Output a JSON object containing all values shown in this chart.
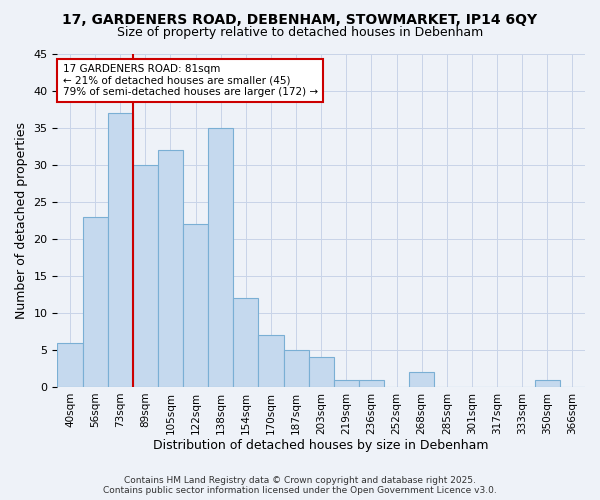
{
  "title_line1": "17, GARDENERS ROAD, DEBENHAM, STOWMARKET, IP14 6QY",
  "title_line2": "Size of property relative to detached houses in Debenham",
  "xlabel": "Distribution of detached houses by size in Debenham",
  "ylabel": "Number of detached properties",
  "categories": [
    "40sqm",
    "56sqm",
    "73sqm",
    "89sqm",
    "105sqm",
    "122sqm",
    "138sqm",
    "154sqm",
    "170sqm",
    "187sqm",
    "203sqm",
    "219sqm",
    "236sqm",
    "252sqm",
    "268sqm",
    "285sqm",
    "301sqm",
    "317sqm",
    "333sqm",
    "350sqm",
    "366sqm"
  ],
  "values": [
    6,
    23,
    37,
    30,
    32,
    22,
    35,
    12,
    7,
    5,
    4,
    1,
    1,
    0,
    2,
    0,
    0,
    0,
    0,
    1,
    0
  ],
  "bar_color": "#c5d9ee",
  "bar_edge_color": "#7aafd4",
  "grid_color": "#c8d4e8",
  "background_color": "#eef2f8",
  "vline_color": "#cc0000",
  "vline_index": 2,
  "annotation_text": "17 GARDENERS ROAD: 81sqm\n← 21% of detached houses are smaller (45)\n79% of semi-detached houses are larger (172) →",
  "annotation_box_facecolor": "#ffffff",
  "annotation_box_edgecolor": "#cc0000",
  "ylim": [
    0,
    45
  ],
  "yticks": [
    0,
    5,
    10,
    15,
    20,
    25,
    30,
    35,
    40,
    45
  ],
  "footer": "Contains HM Land Registry data © Crown copyright and database right 2025.\nContains public sector information licensed under the Open Government Licence v3.0."
}
